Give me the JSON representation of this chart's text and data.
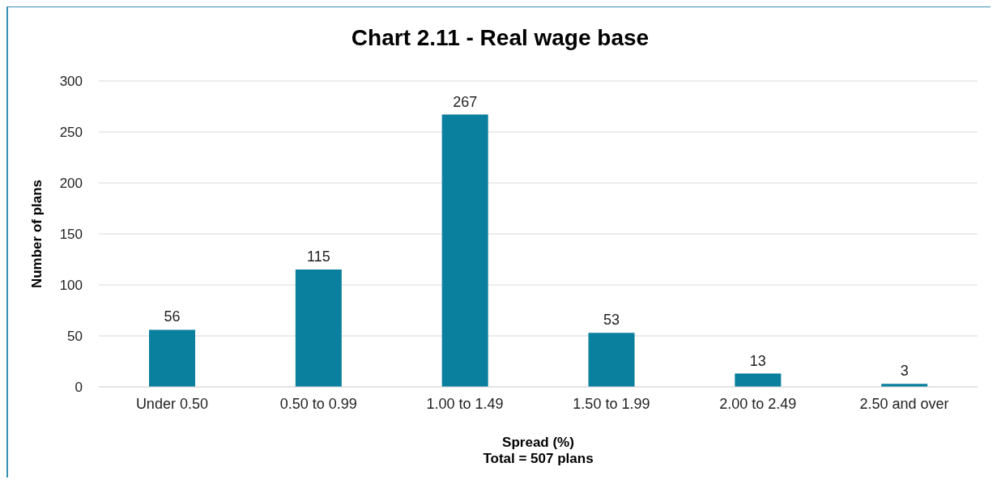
{
  "chart_data": {
    "type": "bar",
    "title": "Chart 2.11 - Real wage base",
    "xlabel": "Spread (%)",
    "ylabel": "Number of plans",
    "annotations": [
      "Total = 507 plans"
    ],
    "categories": [
      "Under 0.50",
      "0.50 to 0.99",
      "1.00 to 1.49",
      "1.50 to 1.99",
      "2.00 to 2.49",
      "2.50 and over"
    ],
    "values": [
      56,
      115,
      267,
      53,
      13,
      3
    ],
    "color": "#0a7f9e",
    "ylim": [
      0,
      300
    ],
    "yticks": [
      0,
      50,
      100,
      150,
      200,
      250,
      300
    ],
    "grid": "y",
    "data_labels": true
  }
}
